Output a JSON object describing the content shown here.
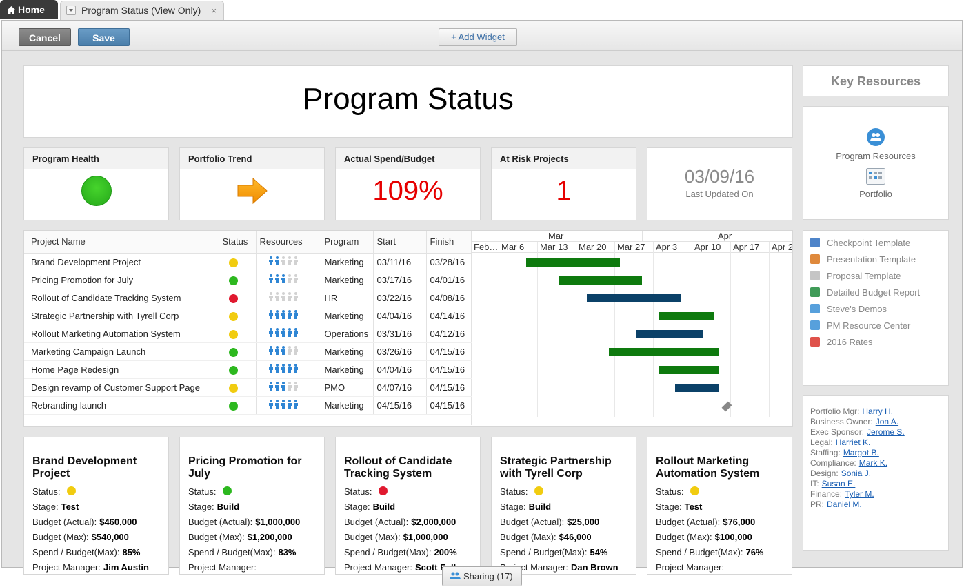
{
  "tabs": {
    "home": "Home",
    "doc": "Program Status (View Only)",
    "close": "×"
  },
  "toolbar": {
    "cancel": "Cancel",
    "save": "Save",
    "add_widget": "+ Add Widget"
  },
  "page_title": "Program Status",
  "metrics": {
    "health": {
      "label": "Program Health",
      "status": "green"
    },
    "trend": {
      "label": "Portfolio Trend",
      "direction": "right-arrow"
    },
    "spend": {
      "label": "Actual Spend/Budget",
      "value": "109%"
    },
    "risk": {
      "label": "At Risk Projects",
      "value": "1"
    },
    "updated": {
      "date": "03/09/16",
      "label": "Last Updated On"
    }
  },
  "grid": {
    "columns": [
      "Project Name",
      "Status",
      "Resources",
      "Program",
      "Start",
      "Finish"
    ],
    "months": [
      "Mar",
      "Apr"
    ],
    "weeks": [
      "Feb…",
      "Mar 6",
      "Mar 13",
      "Mar 20",
      "Mar 27",
      "Apr 3",
      "Apr 10",
      "Apr 17",
      "Apr 2"
    ],
    "rows": [
      {
        "name": "Brand Development Project",
        "status": "yellow",
        "res": 2,
        "program": "Marketing",
        "start": "03/11/16",
        "finish": "03/28/16",
        "bar_color": "#0e7a0e"
      },
      {
        "name": "Pricing Promotion for July",
        "status": "green",
        "res": 3,
        "program": "Marketing",
        "start": "03/17/16",
        "finish": "04/01/16",
        "bar_color": "#0e7a0e"
      },
      {
        "name": "Rollout of Candidate Tracking System",
        "status": "red",
        "res": 0,
        "program": "HR",
        "start": "03/22/16",
        "finish": "04/08/16",
        "bar_color": "#0b4168"
      },
      {
        "name": "Strategic Partnership with Tyrell Corp",
        "status": "yellow",
        "res": 5,
        "program": "Marketing",
        "start": "04/04/16",
        "finish": "04/14/16",
        "bar_color": "#0e7a0e"
      },
      {
        "name": "Rollout Marketing Automation System",
        "status": "yellow",
        "res": 5,
        "program": "Operations",
        "start": "03/31/16",
        "finish": "04/12/16",
        "bar_color": "#0b4168"
      },
      {
        "name": "Marketing Campaign Launch",
        "status": "green",
        "res": 3,
        "program": "Marketing",
        "start": "03/26/16",
        "finish": "04/15/16",
        "bar_color": "#0e7a0e"
      },
      {
        "name": "Home Page Redesign",
        "status": "green",
        "res": 5,
        "program": "Marketing",
        "start": "04/04/16",
        "finish": "04/15/16",
        "bar_color": "#0e7a0e"
      },
      {
        "name": "Design revamp of Customer Support Page",
        "status": "yellow",
        "res": 3,
        "program": "PMO",
        "start": "04/07/16",
        "finish": "04/15/16",
        "bar_color": "#0b4168"
      },
      {
        "name": "Rebranding launch",
        "status": "green",
        "res": 5,
        "program": "Marketing",
        "start": "04/15/16",
        "finish": "04/15/16",
        "bar_color": "#888888"
      }
    ]
  },
  "key_resources": {
    "title": "Key Resources",
    "program_resources": "Program Resources",
    "portfolio": "Portfolio"
  },
  "documents": [
    {
      "label": "Checkpoint Template",
      "icon": "word-icon",
      "color": "#2f6fc0"
    },
    {
      "label": "Presentation Template",
      "icon": "powerpoint-icon",
      "color": "#d9741a"
    },
    {
      "label": "Proposal Template",
      "icon": "document-icon",
      "color": "#bbbbbb"
    },
    {
      "label": "Detailed Budget Report",
      "icon": "excel-icon",
      "color": "#1f8a3b"
    },
    {
      "label": "Steve's Demos",
      "icon": "globe-icon",
      "color": "#3a8fd6"
    },
    {
      "label": "PM Resource Center",
      "icon": "link-icon",
      "color": "#3a8fd6"
    },
    {
      "label": "2016 Rates",
      "icon": "pdf-icon",
      "color": "#d9342b"
    }
  ],
  "people": [
    {
      "role": "Portfolio Mgr:",
      "name": "Harry H."
    },
    {
      "role": "Business Owner:",
      "name": "Jon A."
    },
    {
      "role": "Exec Sponsor:",
      "name": "Jerome S."
    },
    {
      "role": "Legal:",
      "name": "Harriet K."
    },
    {
      "role": "Staffing:",
      "name": "Margot B."
    },
    {
      "role": "Compliance:",
      "name": "Mark K."
    },
    {
      "role": "Design:",
      "name": "Sonia J."
    },
    {
      "role": "IT:",
      "name": "Susan E."
    },
    {
      "role": "Finance:",
      "name": "Tyler M."
    },
    {
      "role": "PR:",
      "name": "Daniel M."
    }
  ],
  "project_cards": [
    {
      "title": "Brand Development Project",
      "status": "yellow",
      "stage": "Test",
      "budget_actual": "$460,000",
      "budget_max": "$540,000",
      "spend": "85%",
      "pm": "Jim Austin"
    },
    {
      "title": "Pricing Promotion for July",
      "status": "green",
      "stage": "Build",
      "budget_actual": "$1,000,000",
      "budget_max": "$1,200,000",
      "spend": "83%",
      "pm": ""
    },
    {
      "title": "Rollout of Candidate Tracking System",
      "status": "red",
      "stage": "Build",
      "budget_actual": "$2,000,000",
      "budget_max": "$1,000,000",
      "spend": "200%",
      "pm": "Scott Fuller"
    },
    {
      "title": "Strategic Partnership with Tyrell Corp",
      "status": "yellow",
      "stage": "Build",
      "budget_actual": "$25,000",
      "budget_max": "$46,000",
      "spend": "54%",
      "pm": "Dan Brown"
    },
    {
      "title": "Rollout Marketing Automation System",
      "status": "yellow",
      "stage": "Test",
      "budget_actual": "$76,000",
      "budget_max": "$100,000",
      "spend": "76%",
      "pm": ""
    }
  ],
  "card_labels": {
    "status": "Status:",
    "stage": "Stage:",
    "budget_actual": "Budget (Actual):",
    "budget_max": "Budget (Max):",
    "spend": "Spend / Budget(Max):",
    "pm": "Project Manager:"
  },
  "sharing": "Sharing (17)",
  "colors": {
    "green": "#2db81f",
    "yellow": "#f1cc10",
    "red": "#e0192f"
  }
}
